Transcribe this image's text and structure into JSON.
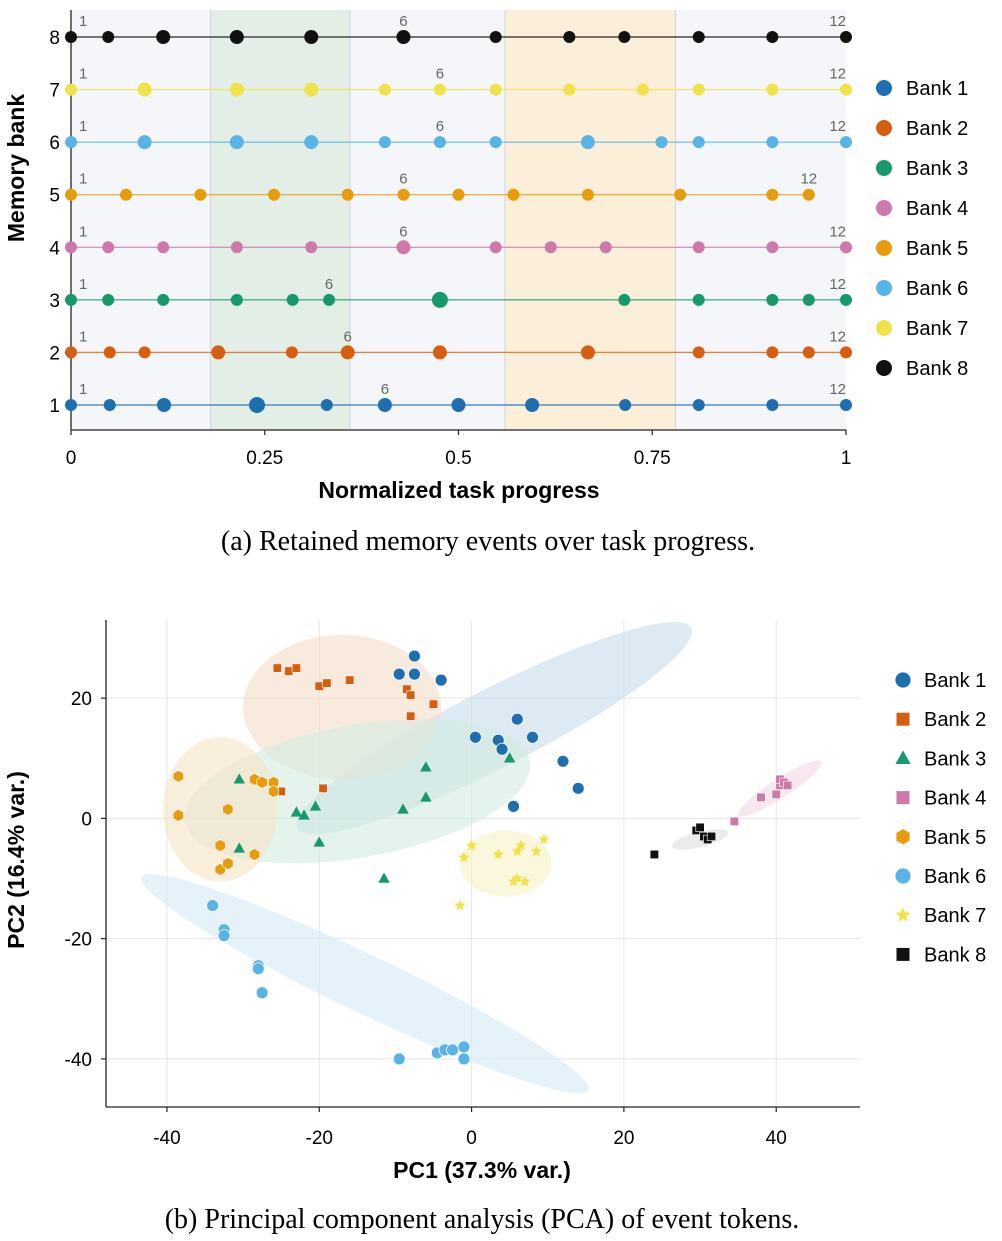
{
  "chart_data": [
    {
      "type": "scatter",
      "panel": "a",
      "xlabel": "Normalized task progress",
      "ylabel": "Memory bank",
      "xlim": [
        0,
        1
      ],
      "ylim": [
        0.6,
        8.5
      ],
      "xticks": [
        "0",
        "0.25",
        "0.5",
        "0.75",
        "1"
      ],
      "xtick_values": [
        0,
        0.25,
        0.5,
        0.75,
        1
      ],
      "yticks": [
        "1",
        "2",
        "3",
        "4",
        "5",
        "6",
        "7",
        "8"
      ],
      "shaded_regions": [
        {
          "x0": 0.18,
          "x1": 0.36,
          "color": "#e3efe6"
        },
        {
          "x0": 0.56,
          "x1": 0.78,
          "color": "#fcefda"
        }
      ],
      "background_color": "#f4f6f9",
      "legend_position": "right",
      "caption": "(a) Retained memory events over task progress.",
      "series": [
        {
          "name": "Bank 1",
          "color": "#1f6fb0",
          "y": 1,
          "x": [
            0,
            0.05,
            0.12,
            0.24,
            0.33,
            0.405,
            0.5,
            0.595,
            0.715,
            0.81,
            0.905,
            1
          ],
          "sizes": [
            6,
            6,
            7,
            8,
            6,
            7,
            7,
            7,
            6,
            6,
            6,
            6
          ],
          "labels": [
            {
              "x": 0,
              "text": "1"
            },
            {
              "x": 0.405,
              "text": "6"
            },
            {
              "x": 1,
              "text": "12"
            }
          ]
        },
        {
          "name": "Bank 2",
          "color": "#d55e10",
          "y": 2,
          "x": [
            0,
            0.05,
            0.095,
            0.19,
            0.285,
            0.357,
            0.476,
            0.667,
            0.81,
            0.905,
            0.952,
            1
          ],
          "sizes": [
            6,
            6,
            6,
            7,
            6,
            7,
            7,
            7,
            6,
            6,
            6,
            6
          ],
          "labels": [
            {
              "x": 0,
              "text": "1"
            },
            {
              "x": 0.357,
              "text": "6"
            },
            {
              "x": 1,
              "text": "12"
            }
          ]
        },
        {
          "name": "Bank 3",
          "color": "#16996b",
          "y": 3,
          "x": [
            0,
            0.048,
            0.119,
            0.214,
            0.286,
            0.333,
            0.476,
            0.714,
            0.81,
            0.905,
            0.952,
            1
          ],
          "sizes": [
            6,
            6,
            6,
            6,
            6,
            6,
            8,
            6,
            6,
            6,
            6,
            6
          ],
          "labels": [
            {
              "x": 0,
              "text": "1"
            },
            {
              "x": 0.333,
              "text": "6"
            },
            {
              "x": 1,
              "text": "12"
            }
          ]
        },
        {
          "name": "Bank 4",
          "color": "#cd79a9",
          "y": 4,
          "x": [
            0,
            0.048,
            0.119,
            0.214,
            0.31,
            0.429,
            0.548,
            0.619,
            0.69,
            0.81,
            0.905,
            1
          ],
          "sizes": [
            6,
            6,
            6,
            6,
            6,
            7,
            6,
            6,
            6,
            6,
            6,
            6
          ],
          "labels": [
            {
              "x": 0,
              "text": "1"
            },
            {
              "x": 0.429,
              "text": "6"
            },
            {
              "x": 1,
              "text": "12"
            }
          ]
        },
        {
          "name": "Bank 5",
          "color": "#e69c0d",
          "y": 5,
          "x": [
            0,
            0.071,
            0.167,
            0.262,
            0.357,
            0.429,
            0.5,
            0.571,
            0.667,
            0.786,
            0.905,
            0.952
          ],
          "sizes": [
            6,
            6,
            6,
            6,
            6,
            6,
            6,
            6,
            6,
            6,
            6,
            6
          ],
          "labels": [
            {
              "x": 0,
              "text": "1"
            },
            {
              "x": 0.429,
              "text": "6"
            },
            {
              "x": 0.952,
              "text": "12"
            }
          ]
        },
        {
          "name": "Bank 6",
          "color": "#59b3e6",
          "y": 6,
          "x": [
            0,
            0.095,
            0.214,
            0.31,
            0.405,
            0.476,
            0.548,
            0.667,
            0.762,
            0.81,
            0.905,
            1
          ],
          "sizes": [
            6,
            7,
            7,
            7,
            6,
            6,
            6,
            7,
            6,
            6,
            6,
            6
          ],
          "labels": [
            {
              "x": 0,
              "text": "1"
            },
            {
              "x": 0.476,
              "text": "6"
            },
            {
              "x": 1,
              "text": "12"
            }
          ]
        },
        {
          "name": "Bank 7",
          "color": "#efe24b",
          "y": 7,
          "x": [
            0,
            0.095,
            0.214,
            0.31,
            0.405,
            0.476,
            0.548,
            0.643,
            0.738,
            0.81,
            0.905,
            1
          ],
          "sizes": [
            6,
            7,
            7,
            7,
            6,
            6,
            6,
            6,
            6,
            6,
            6,
            6
          ],
          "labels": [
            {
              "x": 0,
              "text": "1"
            },
            {
              "x": 0.476,
              "text": "6"
            },
            {
              "x": 1,
              "text": "12"
            }
          ]
        },
        {
          "name": "Bank 8",
          "color": "#111111",
          "y": 8,
          "x": [
            0,
            0.048,
            0.119,
            0.214,
            0.31,
            0.429,
            0.548,
            0.643,
            0.714,
            0.81,
            0.905,
            1
          ],
          "sizes": [
            6,
            6,
            7,
            7,
            7,
            7,
            6,
            6,
            6,
            6,
            6,
            6
          ],
          "labels": [
            {
              "x": 0,
              "text": "1"
            },
            {
              "x": 0.429,
              "text": "6"
            },
            {
              "x": 1,
              "text": "12"
            }
          ]
        }
      ]
    },
    {
      "type": "scatter",
      "panel": "b",
      "xlabel": "PC1 (37.3% var.)",
      "ylabel": "PC2 (16.4% var.)",
      "xlim": [
        -48,
        51
      ],
      "ylim": [
        -48,
        33
      ],
      "xticks": [
        "-40",
        "-20",
        "0",
        "20",
        "40"
      ],
      "xtick_values": [
        -40,
        -20,
        0,
        20,
        40
      ],
      "yticks": [
        "-40",
        "-20",
        "0",
        "20"
      ],
      "ytick_values": [
        -40,
        -20,
        0,
        20
      ],
      "grid": true,
      "legend_position": "right",
      "caption": "(b) Principal component analysis (PCA) of event tokens.",
      "series": [
        {
          "name": "Bank 1",
          "color": "#1f6fb0",
          "marker": "circle",
          "ellipse": {
            "cx": 3,
            "cy": 15,
            "rx": 29,
            "ry": 6.5,
            "angle": -27,
            "color": "#c6dceb"
          },
          "points": [
            [
              -9.5,
              24
            ],
            [
              -7.5,
              27
            ],
            [
              -7.5,
              24
            ],
            [
              -4,
              23
            ],
            [
              0.5,
              13.5
            ],
            [
              3.5,
              13
            ],
            [
              4,
              11.5
            ],
            [
              6,
              16.5
            ],
            [
              8,
              13.5
            ],
            [
              12,
              9.5
            ],
            [
              14,
              5
            ],
            [
              5.5,
              2
            ]
          ]
        },
        {
          "name": "Bank 2",
          "color": "#d55e10",
          "marker": "square",
          "ellipse": {
            "cx": -17,
            "cy": 18.5,
            "rx": 13,
            "ry": 12,
            "angle": 0,
            "color": "#f5dcc8"
          },
          "points": [
            [
              -25.5,
              25
            ],
            [
              -24,
              24.5
            ],
            [
              -23,
              25
            ],
            [
              -20,
              22
            ],
            [
              -19,
              22.5
            ],
            [
              -16,
              23
            ],
            [
              -8.5,
              21.5
            ],
            [
              -8,
              20.5
            ],
            [
              -8,
              17
            ],
            [
              -5,
              19
            ],
            [
              -19.5,
              5
            ],
            [
              -25,
              4.5
            ]
          ]
        },
        {
          "name": "Bank 3",
          "color": "#16996b",
          "marker": "triangle",
          "ellipse": {
            "cx": -15,
            "cy": 4.5,
            "rx": 23,
            "ry": 11,
            "angle": -10,
            "color": "#d2ebdf"
          },
          "points": [
            [
              -30.5,
              6.5
            ],
            [
              -30.5,
              -5
            ],
            [
              -23,
              1
            ],
            [
              -22,
              0.5
            ],
            [
              -20.5,
              2
            ],
            [
              -20,
              -4
            ],
            [
              -11.5,
              -10
            ],
            [
              -9,
              1.5
            ],
            [
              -6,
              3.5
            ],
            [
              -6,
              8.5
            ],
            [
              5,
              10
            ]
          ]
        },
        {
          "name": "Bank 4",
          "color": "#cd79a9",
          "marker": "square",
          "ellipse": {
            "cx": 40.5,
            "cy": 5,
            "rx": 6.5,
            "ry": 1.6,
            "angle": -33,
            "color": "#f4d6e6"
          },
          "points": [
            [
              34.5,
              -0.5
            ],
            [
              38,
              3.5
            ],
            [
              40,
              4
            ],
            [
              40.5,
              5.5
            ],
            [
              40.5,
              6.5
            ],
            [
              41,
              6
            ],
            [
              41.5,
              5.5
            ]
          ]
        },
        {
          "name": "Bank 5",
          "color": "#e69c0d",
          "marker": "hexagon",
          "ellipse": {
            "cx": -33,
            "cy": 1.5,
            "rx": 7.5,
            "ry": 12,
            "angle": 0,
            "color": "#f7e3c6"
          },
          "points": [
            [
              -38.5,
              7
            ],
            [
              -38.5,
              0.5
            ],
            [
              -32,
              1.5
            ],
            [
              -33,
              -4.5
            ],
            [
              -33,
              -8.5
            ],
            [
              -32,
              -7.5
            ],
            [
              -28.5,
              6.5
            ],
            [
              -27.5,
              6
            ],
            [
              -26,
              6
            ],
            [
              -26,
              4.5
            ],
            [
              -28.5,
              -6
            ]
          ]
        },
        {
          "name": "Bank 6",
          "color": "#59b3e6",
          "marker": "circle",
          "ellipse": {
            "cx": -14,
            "cy": -27.5,
            "rx": 32.5,
            "ry": 4.8,
            "angle": 25.5,
            "color": "#d6e9f6"
          },
          "points": [
            [
              -34,
              -14.5
            ],
            [
              -32.5,
              -18.5
            ],
            [
              -32.5,
              -19.5
            ],
            [
              -28,
              -24.5
            ],
            [
              -28,
              -25
            ],
            [
              -27.5,
              -29
            ],
            [
              -9.5,
              -40
            ],
            [
              -4.5,
              -39
            ],
            [
              -3.5,
              -38.5
            ],
            [
              -2.5,
              -38.5
            ],
            [
              -1,
              -38
            ],
            [
              -1,
              -40
            ]
          ]
        },
        {
          "name": "Bank 7",
          "color": "#efe24b",
          "marker": "star",
          "ellipse": {
            "cx": 4.5,
            "cy": -7.5,
            "rx": 6,
            "ry": 5.5,
            "angle": 0,
            "color": "#f8f2c6"
          },
          "points": [
            [
              -1.5,
              -14.5
            ],
            [
              -1,
              -6.5
            ],
            [
              0,
              -4.5
            ],
            [
              3.5,
              -6
            ],
            [
              5.5,
              -10.5
            ],
            [
              6,
              -10
            ],
            [
              6,
              -5.5
            ],
            [
              6.5,
              -4.5
            ],
            [
              7,
              -10.5
            ],
            [
              8.5,
              -5.5
            ],
            [
              9.5,
              -3.5
            ]
          ]
        },
        {
          "name": "Bank 8",
          "color": "#111111",
          "marker": "square",
          "ellipse": {
            "cx": 30,
            "cy": -3.5,
            "rx": 3.8,
            "ry": 1.3,
            "angle": -14,
            "color": "#dddddd"
          },
          "points": [
            [
              24,
              -6
            ],
            [
              29.5,
              -2
            ],
            [
              30,
              -1.5
            ],
            [
              30.5,
              -3
            ],
            [
              31,
              -3.5
            ],
            [
              31.5,
              -3
            ]
          ]
        }
      ]
    }
  ]
}
